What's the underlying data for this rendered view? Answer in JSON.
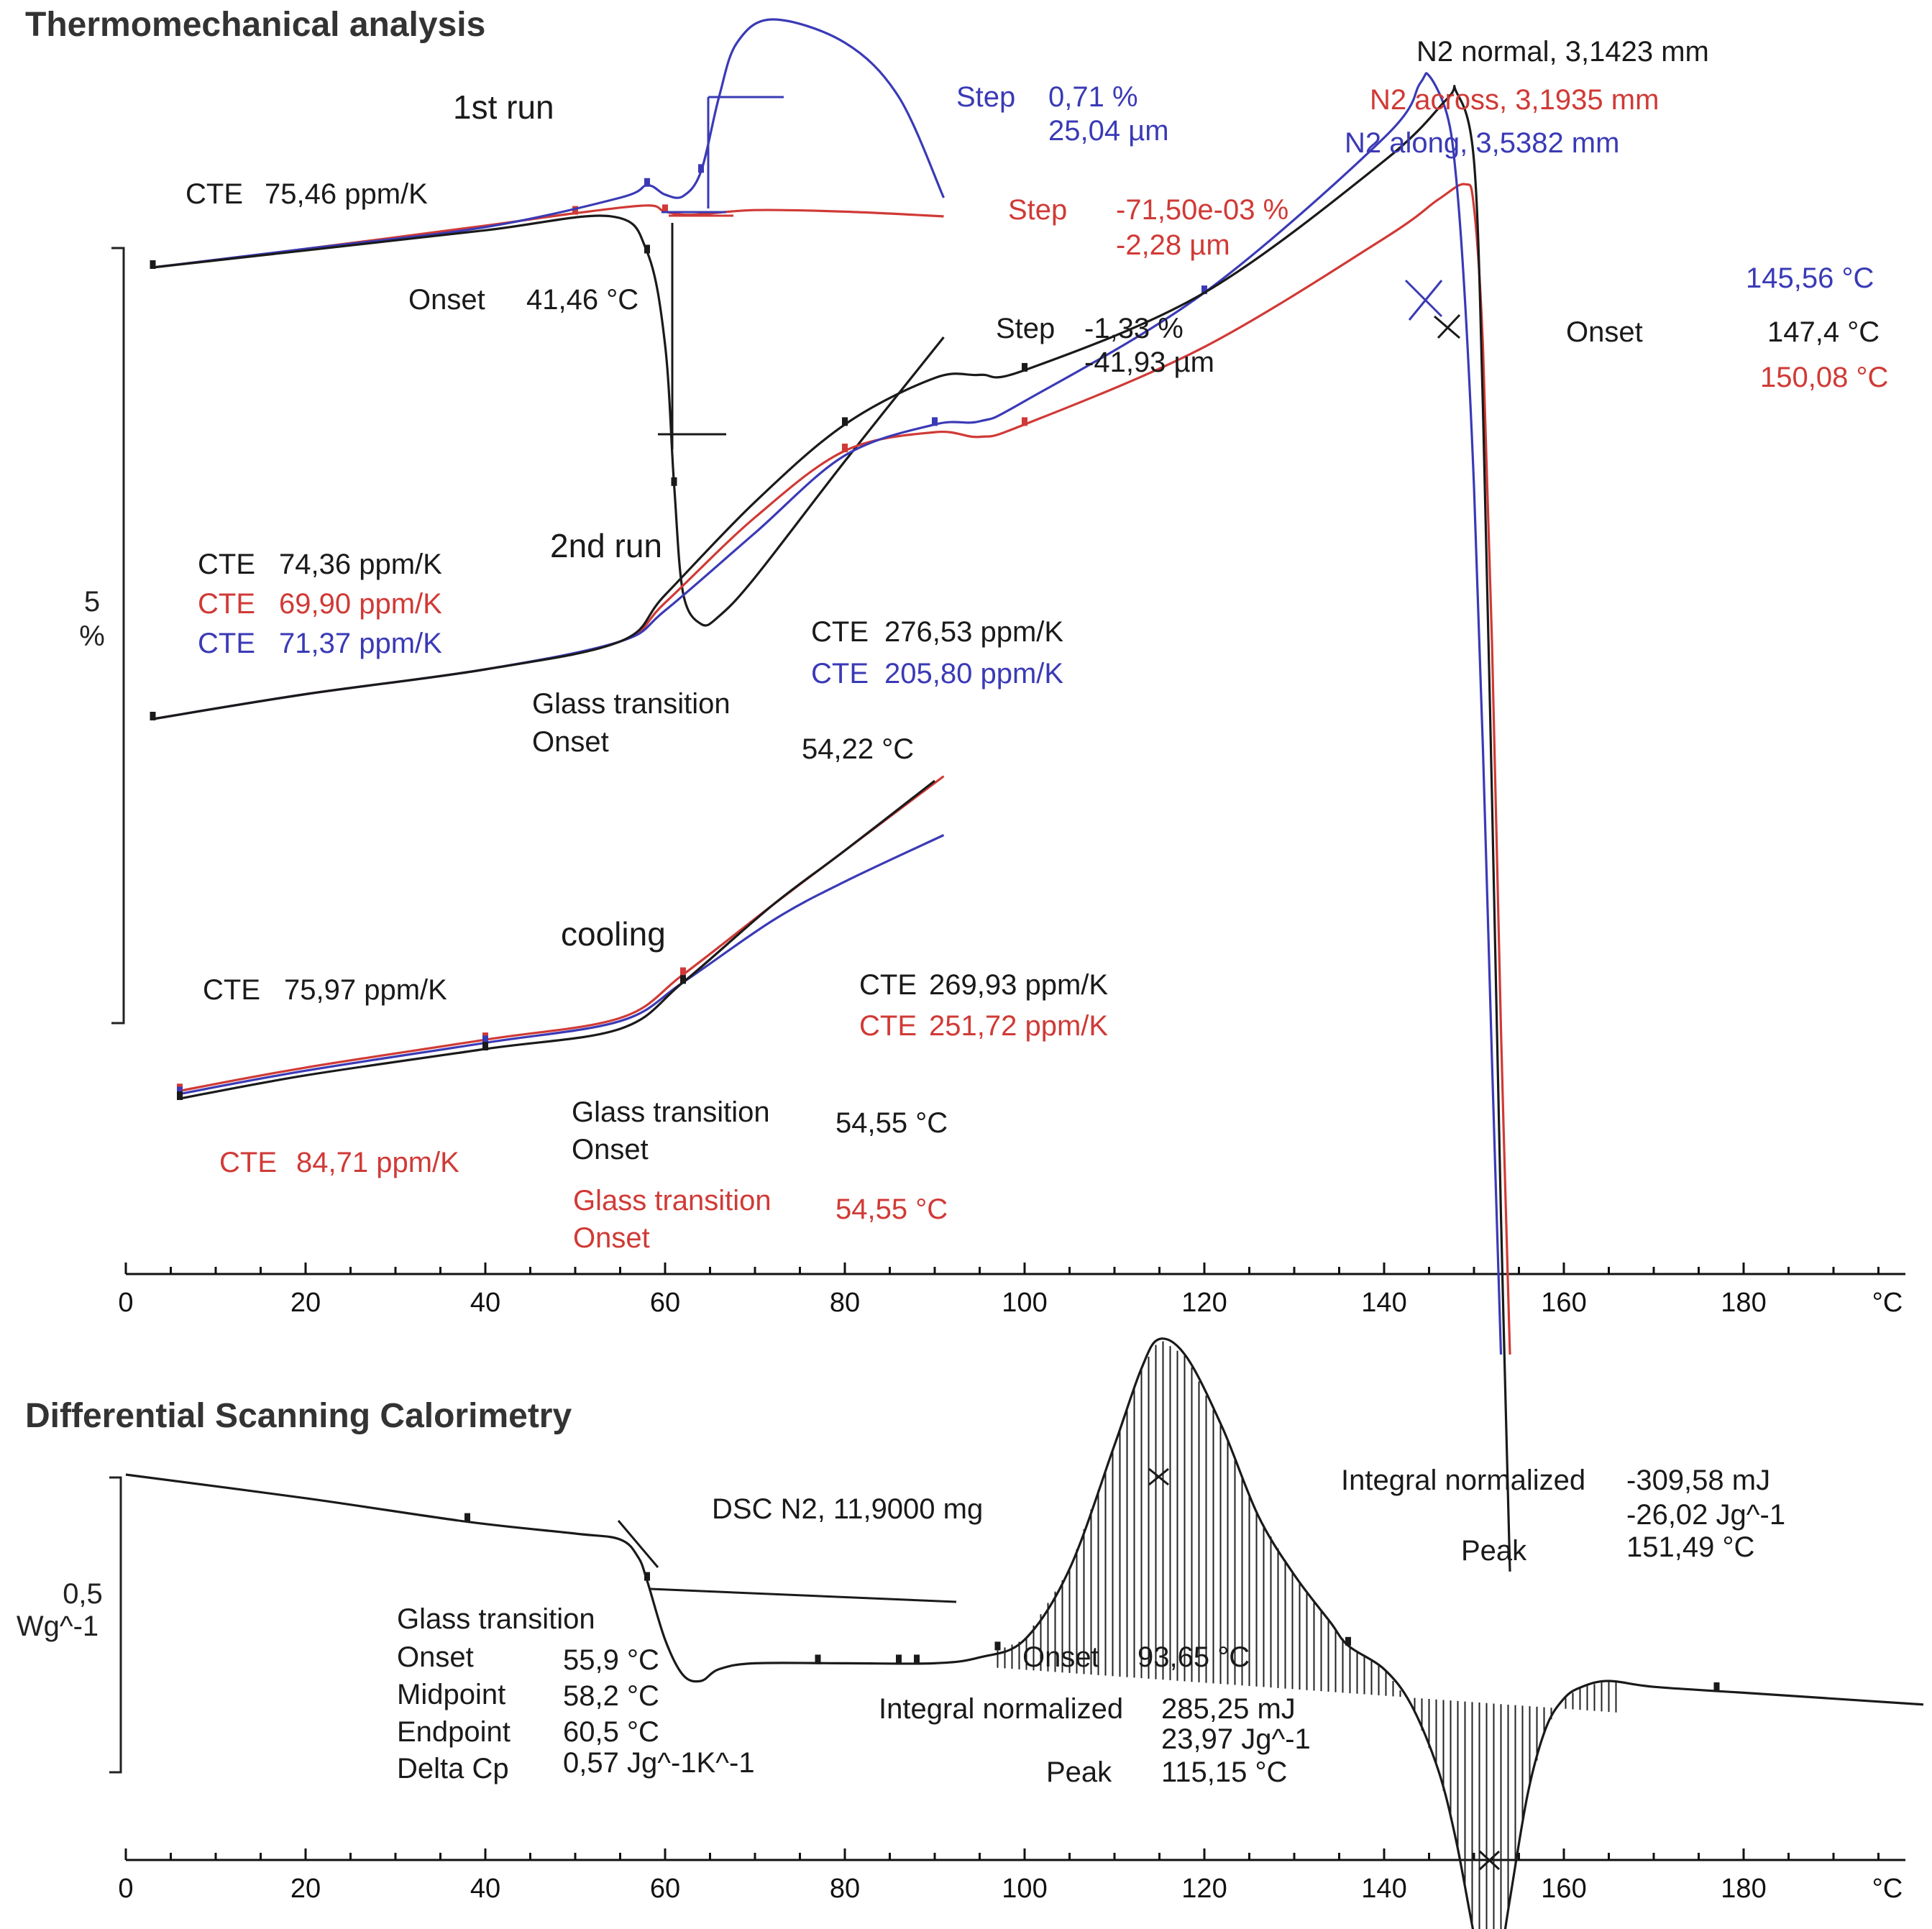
{
  "chart_data": [
    {
      "type": "line",
      "title": "Thermomechanical analysis",
      "xlabel": "°C",
      "ylabel": "5 %",
      "scale_bar": {
        "value": "5",
        "unit": "%"
      },
      "xlim": [
        0,
        200
      ],
      "x_ticks": [
        "0",
        "20",
        "40",
        "60",
        "80",
        "100",
        "120",
        "140",
        "160",
        "180",
        "°C"
      ],
      "legend": [
        "N2 normal, 3,1423 mm",
        "N2 across, 3,1935 mm",
        "N2 along, 3,5382 mm"
      ],
      "colors": {
        "normal": "#1a1a1a",
        "across": "#d03a36",
        "along": "#3a3ab6",
        "normal_text": "#1a1a1a",
        "across_text": "#d03a36",
        "along_text": "#3a3ab6"
      },
      "segments": [
        {
          "name": "1st run",
          "series": [
            {
              "name": "N2 normal, 3,1423 mm",
              "x": [
                3,
                20,
                40,
                54,
                58,
                60,
                61,
                62,
                64,
                66,
                70,
                80,
                91
              ],
              "y": [
                0,
                0.11,
                0.24,
                0.33,
                0.1,
                -0.5,
                -1.4,
                -2.1,
                -2.3,
                -2.25,
                -2.0,
                -1.25,
                -0.45
              ]
            },
            {
              "name": "N2 across, 3,1935 mm",
              "x": [
                3,
                20,
                40,
                50,
                58,
                60,
                63,
                70,
                80,
                91
              ],
              "y": [
                0,
                0.12,
                0.27,
                0.35,
                0.4,
                0.36,
                0.34,
                0.37,
                0.36,
                0.33
              ]
            },
            {
              "name": "N2 along, 3,5382 mm",
              "x": [
                3,
                20,
                40,
                55,
                58,
                60,
                62,
                64,
                66,
                68,
                72,
                80,
                86,
                91
              ],
              "y": [
                0,
                0.12,
                0.26,
                0.45,
                0.53,
                0.47,
                0.46,
                0.62,
                1.1,
                1.45,
                1.6,
                1.45,
                1.1,
                0.45
              ]
            }
          ]
        },
        {
          "name": "2nd run",
          "series": [
            {
              "name": "N2 normal, 3,1423 mm",
              "x": [
                3,
                20,
                40,
                55,
                60,
                70,
                80,
                90,
                95,
                100,
                120,
                140,
                147,
                148,
                150,
                151,
                152,
                153,
                154
              ],
              "y": [
                0,
                0.16,
                0.32,
                0.5,
                0.8,
                1.4,
                1.9,
                2.2,
                2.22,
                2.25,
                2.75,
                3.6,
                4.0,
                4.05,
                3.6,
                2.0,
                -0.5,
                -3.2,
                -5.5
              ]
            },
            {
              "name": "N2 across, 3,1935 mm",
              "x": [
                3,
                20,
                40,
                55,
                60,
                70,
                80,
                90,
                95,
                100,
                120,
                140,
                146,
                149,
                150,
                151,
                152,
                153,
                154
              ],
              "y": [
                0,
                0.16,
                0.32,
                0.5,
                0.75,
                1.3,
                1.73,
                1.85,
                1.82,
                1.9,
                2.4,
                3.1,
                3.35,
                3.45,
                3.3,
                2.4,
                0.5,
                -2.0,
                -4.1
              ]
            },
            {
              "name": "N2 along, 3,5382 mm",
              "x": [
                3,
                20,
                40,
                55,
                60,
                70,
                80,
                90,
                95,
                100,
                120,
                140,
                144,
                145,
                147,
                148,
                149,
                150,
                151,
                152,
                153
              ],
              "y": [
                0,
                0.16,
                0.32,
                0.5,
                0.7,
                1.2,
                1.7,
                1.9,
                1.92,
                2.05,
                2.75,
                3.75,
                4.1,
                4.15,
                3.9,
                3.5,
                2.7,
                1.5,
                -0.2,
                -2.2,
                -4.1
              ]
            }
          ]
        },
        {
          "name": "cooling",
          "series": [
            {
              "name": "N2 normal, 3,1423 mm",
              "x": [
                6,
                20,
                40,
                55,
                62,
                72,
                80,
                90
              ],
              "y": [
                0,
                0.15,
                0.32,
                0.45,
                0.75,
                1.25,
                1.6,
                2.05
              ]
            },
            {
              "name": "N2 across, 3,1935 mm",
              "x": [
                6,
                20,
                40,
                55,
                62,
                72,
                80,
                91
              ],
              "y": [
                0.05,
                0.2,
                0.38,
                0.52,
                0.8,
                1.25,
                1.6,
                2.08
              ]
            },
            {
              "name": "N2 along, 3,5382 mm",
              "x": [
                6,
                20,
                40,
                55,
                62,
                72,
                80,
                91
              ],
              "y": [
                0.03,
                0.18,
                0.36,
                0.5,
                0.75,
                1.15,
                1.4,
                1.7
              ]
            }
          ]
        }
      ],
      "annotations": {
        "run1_label": "1st run",
        "run2_label": "2nd run",
        "cooling_label": "cooling",
        "run1": {
          "cte_label": "CTE",
          "cte_value": "75,46 ppm/K",
          "onset_label": "Onset",
          "onset_value": "41,46 °C",
          "step_blue_label": "Step",
          "step_blue_value1": "0,71 %",
          "step_blue_value2": "25,04 µm",
          "step_red_label": "Step",
          "step_red_value1": "-71,50e-03 %",
          "step_red_value2": "-2,28 µm",
          "step_black_label": "Step",
          "step_black_value1": "-1,33 %",
          "step_black_value2": "-41,93 µm"
        },
        "run2": {
          "cte_label": "CTE",
          "cte_black": "74,36 ppm/K",
          "cte_red": "69,90 ppm/K",
          "cte_blue": "71,37 ppm/K",
          "cte_high_black": "276,53 ppm/K",
          "cte_high_blue": "205,80 ppm/K",
          "glass_label": "Glass transition",
          "onset_label": "Onset",
          "glass_value": "54,22 °C",
          "peak_onset_label": "Onset",
          "peak_blue": "145,56 °C",
          "peak_black": "147,4 °C",
          "peak_red": "150,08 °C"
        },
        "cooling": {
          "cte_label": "CTE",
          "cte_black": "75,97 ppm/K",
          "cte_red_low": "84,71 ppm/K",
          "cte_high_black": "269,93 ppm/K",
          "cte_high_red": "251,72 ppm/K",
          "glass_black_label": "Glass transition",
          "onset_black_label": "Onset",
          "glass_black_value": "54,55 °C",
          "glass_red_label": "Glass transition",
          "onset_red_label": "Onset",
          "glass_red_value": "54,55 °C"
        }
      }
    },
    {
      "type": "line",
      "title": "Differential Scanning Calorimetry",
      "xlabel": "°C",
      "ylabel": "Wg^-1",
      "scale_bar": {
        "value": "0,5",
        "unit": "Wg^-1"
      },
      "xlim": [
        0,
        200
      ],
      "x_ticks": [
        "0",
        "20",
        "40",
        "60",
        "80",
        "100",
        "120",
        "140",
        "160",
        "180",
        "°C"
      ],
      "series": [
        {
          "name": "DSC N2, 11,9000 mg",
          "x": [
            0,
            20,
            38,
            50,
            55,
            57,
            58,
            60,
            62,
            64,
            66,
            70,
            80,
            90,
            95,
            100,
            105,
            110,
            113,
            115,
            118,
            122,
            126,
            130,
            134,
            136,
            140,
            143,
            146,
            148,
            150,
            151.5,
            152.5,
            154,
            156,
            158,
            160,
            162,
            165,
            170,
            180,
            200
          ],
          "y": [
            0.2,
            0.16,
            0.12,
            0.1,
            0.09,
            0.06,
            0.02,
            -0.08,
            -0.14,
            -0.15,
            -0.13,
            -0.12,
            -0.12,
            -0.12,
            -0.11,
            -0.08,
            0.04,
            0.25,
            0.38,
            0.43,
            0.4,
            0.28,
            0.13,
            0.03,
            -0.05,
            -0.09,
            -0.13,
            -0.19,
            -0.3,
            -0.42,
            -0.58,
            -0.68,
            -0.66,
            -0.52,
            -0.34,
            -0.23,
            -0.18,
            -0.16,
            -0.15,
            -0.16,
            -0.17,
            -0.19
          ]
        }
      ],
      "annotations": {
        "sample_label": "DSC  N2, 11,9000 mg",
        "glass_label": "Glass transition",
        "onset_label": "Onset",
        "onset_value": "55,9 °C",
        "midpoint_label": "Midpoint",
        "midpoint_value": "58,2 °C",
        "endpoint_label": "Endpoint",
        "endpoint_value": "60,5 °C",
        "deltacp_label": "Delta Cp",
        "deltacp_value": "0,57 Jg^-1K^-1",
        "exo_onset_label": "Onset",
        "exo_onset_value": "93,65 °C",
        "exo_integral_label": "Integral normalized",
        "exo_integral_value1": "285,25 mJ",
        "exo_integral_value2": "23,97 Jg^-1",
        "exo_peak_label": "Peak",
        "exo_peak_value": "115,15 °C",
        "endo_integral_label": "Integral normalized",
        "endo_integral_value1": "-309,58 mJ",
        "endo_integral_value2": "-26,02 Jg^-1",
        "endo_peak_label": "Peak",
        "endo_peak_value": "151,49 °C"
      }
    }
  ]
}
